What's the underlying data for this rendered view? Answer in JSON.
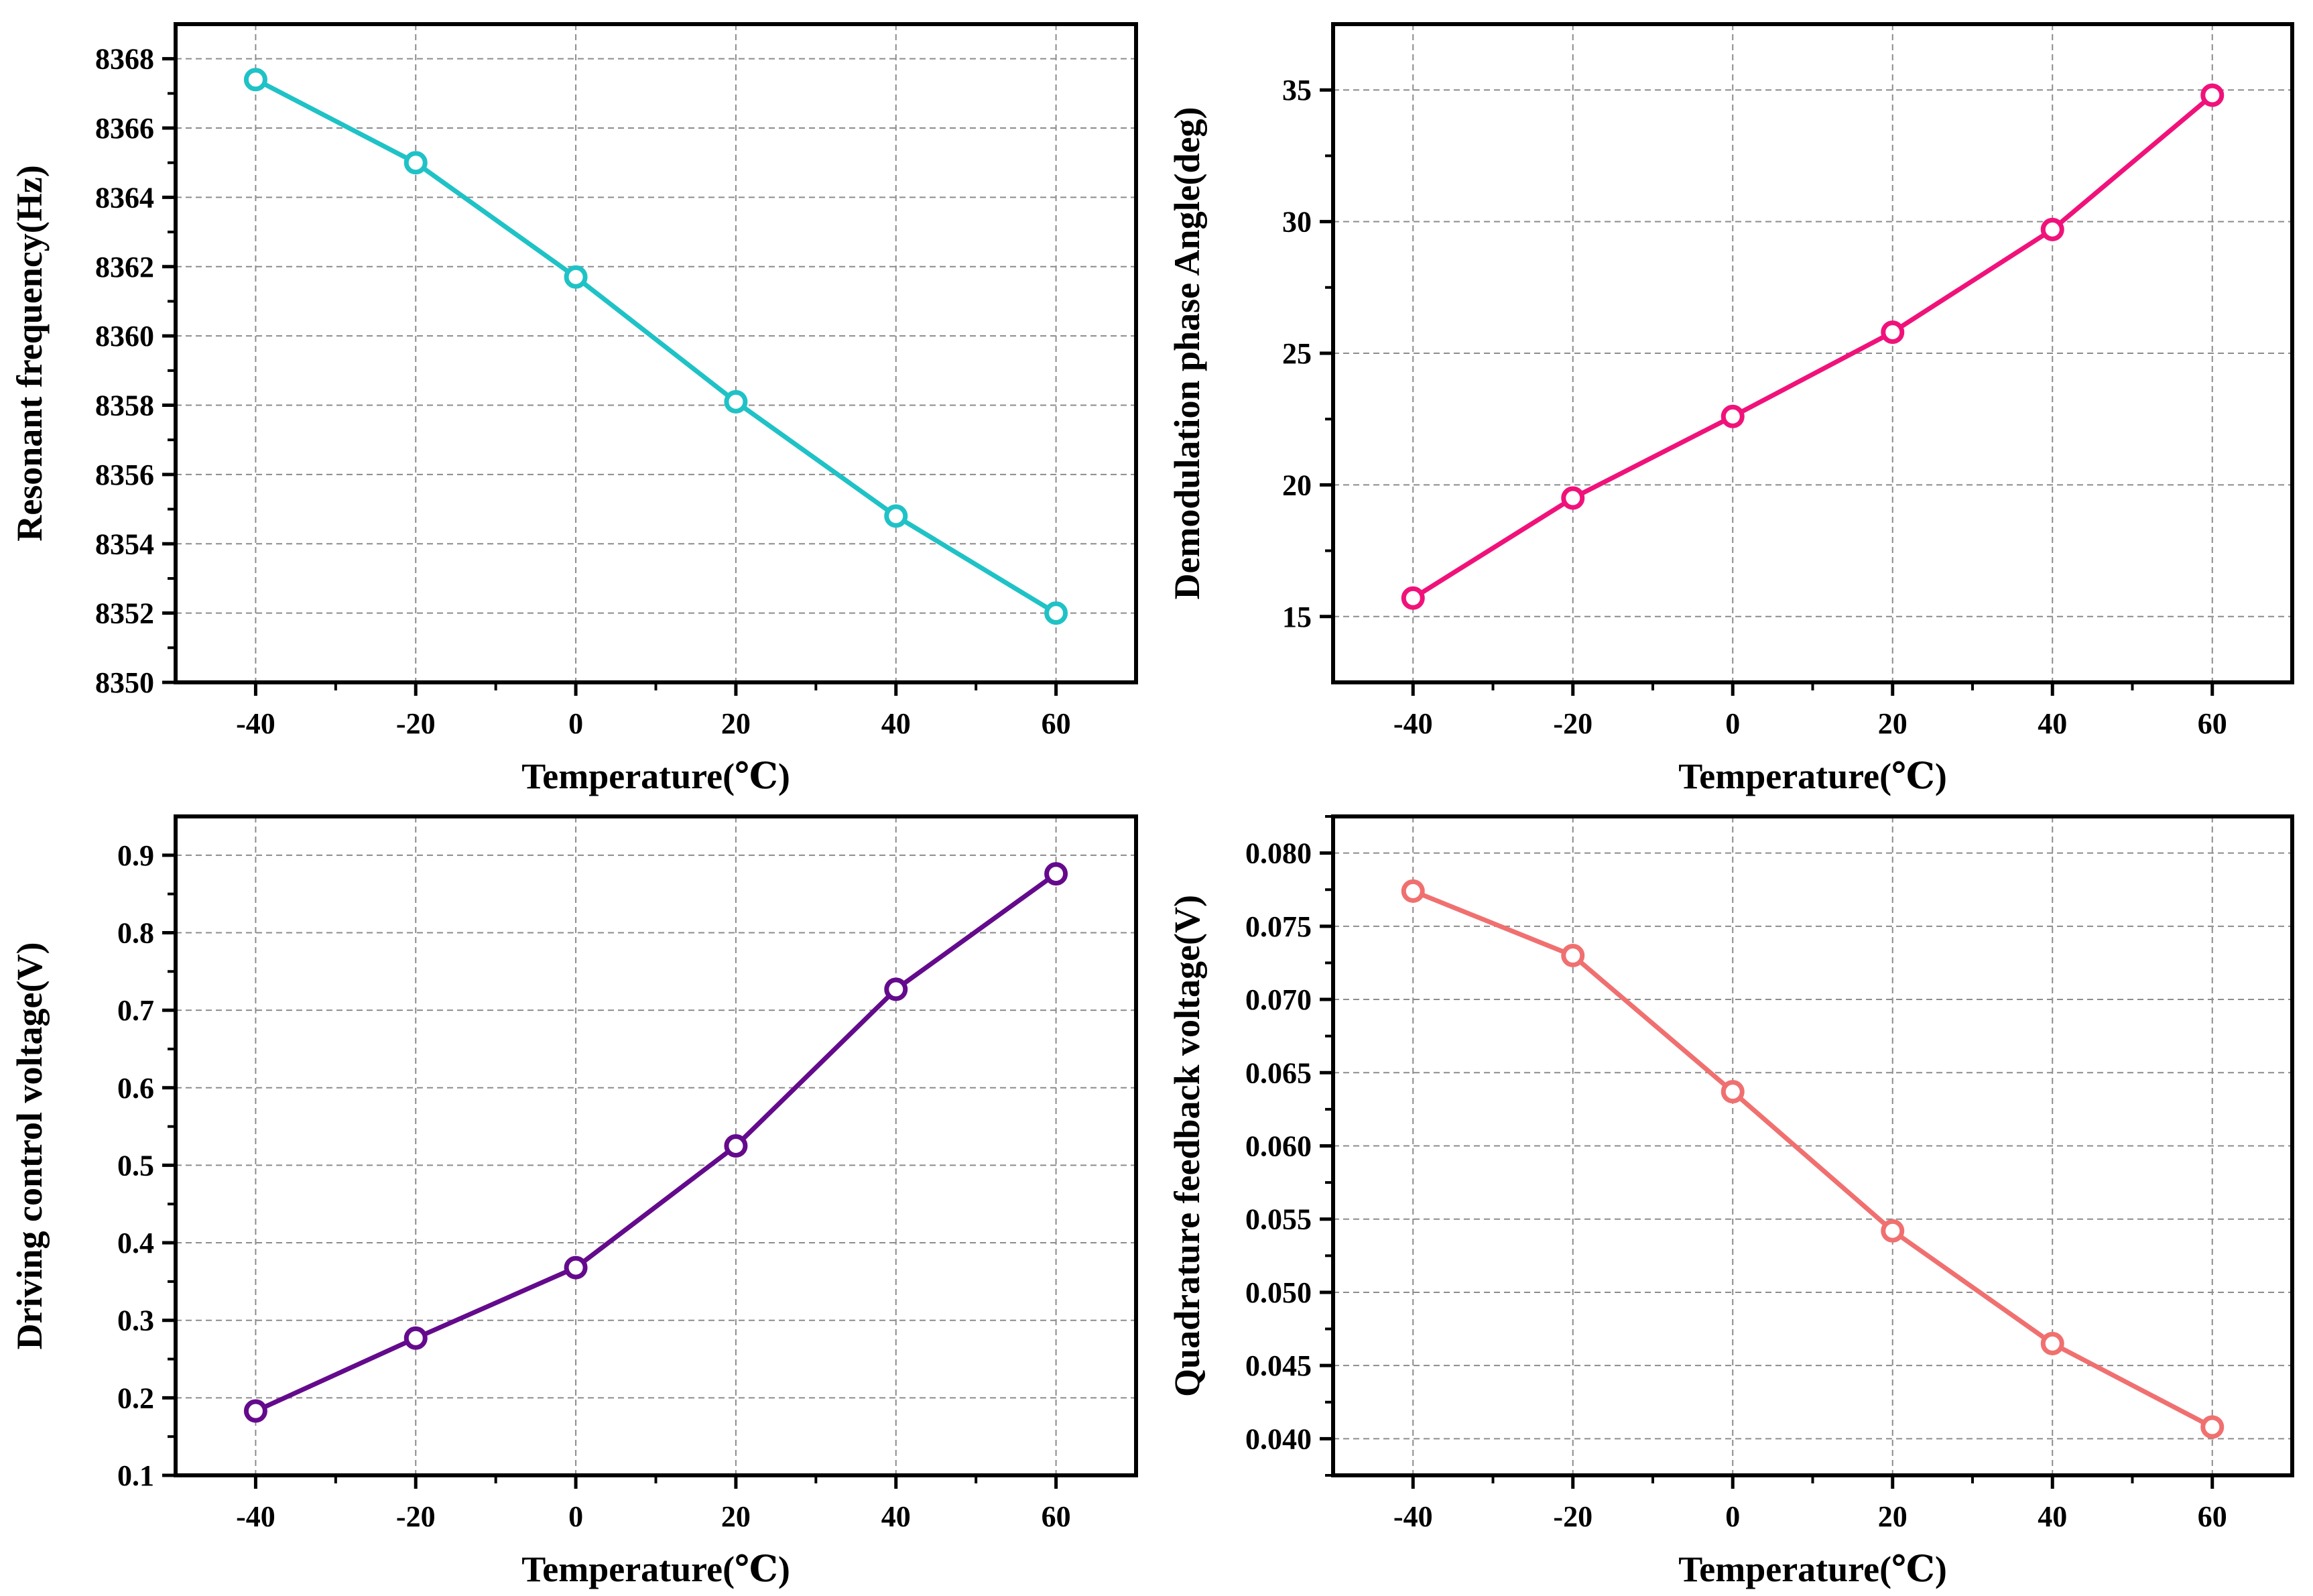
{
  "chart_data": [
    {
      "type": "line",
      "id": "resonant-frequency",
      "title": "",
      "xlabel": "Temperature(℃)",
      "ylabel": "Resonant frequency(Hz)",
      "xlim": [
        -50,
        70
      ],
      "ylim": [
        8350,
        8369
      ],
      "xticks": [
        -40,
        -20,
        0,
        20,
        40,
        60
      ],
      "xtick_labels": [
        "-40",
        "-20",
        "0",
        "20",
        "40",
        "60"
      ],
      "yticks": [
        8350,
        8352,
        8354,
        8356,
        8358,
        8360,
        8362,
        8364,
        8366,
        8368
      ],
      "ytick_labels": [
        "8350",
        "8352",
        "8354",
        "8356",
        "8358",
        "8360",
        "8362",
        "8364",
        "8366",
        "8368"
      ],
      "grid": true,
      "color": "#1fc2c6",
      "series": [
        {
          "name": "Resonant frequency",
          "x": [
            -40,
            -20,
            0,
            20,
            40,
            60
          ],
          "values": [
            8367.4,
            8365.0,
            8361.7,
            8358.1,
            8354.8,
            8352.0
          ]
        }
      ]
    },
    {
      "type": "line",
      "id": "demodulation-phase",
      "title": "",
      "xlabel": "Temperature(℃)",
      "ylabel": "Demodulation phase Angle(deg)",
      "xlim": [
        -50,
        70
      ],
      "ylim": [
        12.5,
        37.5
      ],
      "xticks": [
        -40,
        -20,
        0,
        20,
        40,
        60
      ],
      "xtick_labels": [
        "-40",
        "-20",
        "0",
        "20",
        "40",
        "60"
      ],
      "yticks": [
        15,
        20,
        25,
        30,
        35
      ],
      "ytick_labels": [
        "15",
        "20",
        "25",
        "30",
        "35"
      ],
      "grid": true,
      "color": "#f0127a",
      "series": [
        {
          "name": "Demodulation phase Angle",
          "x": [
            -40,
            -20,
            0,
            20,
            40,
            60
          ],
          "values": [
            15.7,
            19.5,
            22.6,
            25.8,
            29.7,
            34.8
          ]
        }
      ]
    },
    {
      "type": "line",
      "id": "driving-control-voltage",
      "title": "",
      "xlabel": "Temperature(℃)",
      "ylabel": "Driving control voltage(V)",
      "xlim": [
        -50,
        70
      ],
      "ylim": [
        0.1,
        0.95
      ],
      "xticks": [
        -40,
        -20,
        0,
        20,
        40,
        60
      ],
      "xtick_labels": [
        "-40",
        "-20",
        "0",
        "20",
        "40",
        "60"
      ],
      "yticks": [
        0.1,
        0.2,
        0.3,
        0.4,
        0.5,
        0.6,
        0.7,
        0.8,
        0.9
      ],
      "ytick_labels": [
        "0.1",
        "0.2",
        "0.3",
        "0.4",
        "0.5",
        "0.6",
        "0.7",
        "0.8",
        "0.9"
      ],
      "grid": true,
      "color": "#640a8c",
      "series": [
        {
          "name": "Driving control voltage",
          "x": [
            -40,
            -20,
            0,
            20,
            40,
            60
          ],
          "values": [
            0.183,
            0.277,
            0.368,
            0.525,
            0.727,
            0.876
          ]
        }
      ]
    },
    {
      "type": "line",
      "id": "quadrature-feedback-voltage",
      "title": "",
      "xlabel": "Temperature(℃)",
      "ylabel": "Quadrature feedback voltage(V)",
      "xlim": [
        -50,
        70
      ],
      "ylim": [
        0.0375,
        0.0825
      ],
      "xticks": [
        -40,
        -20,
        0,
        20,
        40,
        60
      ],
      "xtick_labels": [
        "-40",
        "-20",
        "0",
        "20",
        "40",
        "60"
      ],
      "yticks": [
        0.04,
        0.045,
        0.05,
        0.055,
        0.06,
        0.065,
        0.07,
        0.075,
        0.08
      ],
      "ytick_labels": [
        "0.040",
        "0.045",
        "0.050",
        "0.055",
        "0.060",
        "0.065",
        "0.070",
        "0.075",
        "0.080"
      ],
      "grid": true,
      "color": "#f07070",
      "series": [
        {
          "name": "Quadrature feedback voltage",
          "x": [
            -40,
            -20,
            0,
            20,
            40,
            60
          ],
          "values": [
            0.0774,
            0.073,
            0.0637,
            0.0542,
            0.0465,
            0.0408
          ]
        }
      ]
    }
  ]
}
